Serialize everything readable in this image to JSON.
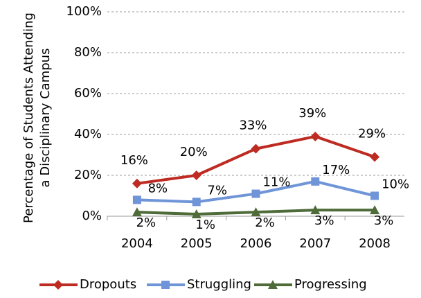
{
  "chart_data": {
    "type": "line",
    "y_label": [
      "Percentage of Students Attending",
      "a Disciplinary Campus"
    ],
    "categories": [
      "2004",
      "2005",
      "2006",
      "2007",
      "2008"
    ],
    "series": [
      {
        "name": "Dropouts",
        "color": "#be2b22",
        "marker": "diamond",
        "values": [
          16,
          20,
          33,
          39,
          29
        ],
        "value_labels": [
          "16%",
          "20%",
          "33%",
          "39%",
          "29%"
        ],
        "label_position": "above"
      },
      {
        "name": "Struggling",
        "color": "#6f95d8",
        "marker": "square",
        "values": [
          8,
          7,
          11,
          17,
          10
        ],
        "value_labels": [
          "8%",
          "7%",
          "11%",
          "17%",
          "10%"
        ],
        "label_position": "right"
      },
      {
        "name": "Progressing",
        "color": "#4e6b39",
        "marker": "triangle",
        "values": [
          2,
          1,
          2,
          3,
          3
        ],
        "value_labels": [
          "2%",
          "1%",
          "2%",
          "3%",
          "3%"
        ],
        "label_position": "below"
      }
    ],
    "ylim": [
      0,
      100
    ],
    "yticks": [
      {
        "value": 0,
        "label": "0%"
      },
      {
        "value": 20,
        "label": "20%"
      },
      {
        "value": 40,
        "label": "40%"
      },
      {
        "value": 60,
        "label": "60%"
      },
      {
        "value": 80,
        "label": "80%"
      },
      {
        "value": 100,
        "label": "100%"
      }
    ],
    "grid": true,
    "legend": "bottom"
  }
}
